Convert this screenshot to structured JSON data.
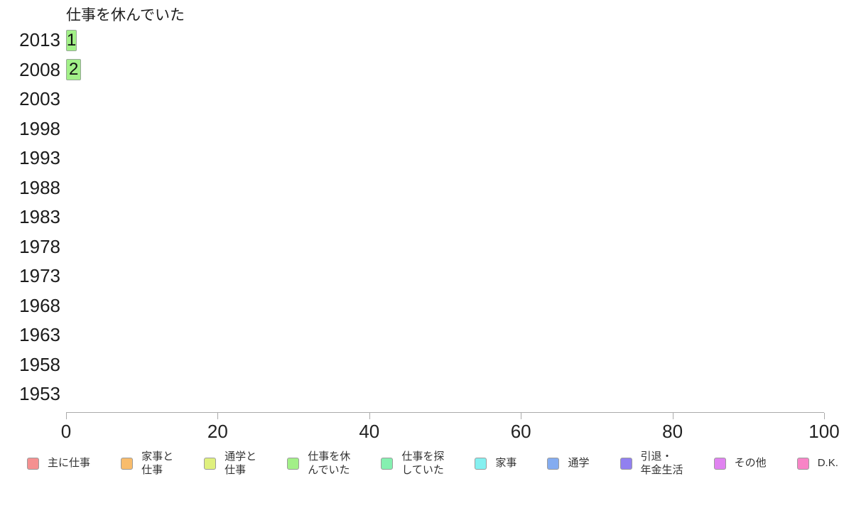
{
  "chart_data": {
    "type": "bar",
    "orientation": "horizontal",
    "title": "仕事を休んでいた",
    "series_name": "仕事を休んでいた",
    "categories": [
      "2013",
      "2008",
      "2003",
      "1998",
      "1993",
      "1988",
      "1983",
      "1978",
      "1973",
      "1968",
      "1963",
      "1958",
      "1953"
    ],
    "values": [
      1,
      2,
      0,
      0,
      0,
      0,
      0,
      0,
      0,
      0,
      0,
      0,
      0
    ],
    "show_value_labels": true,
    "xlim": [
      0,
      100
    ],
    "x_ticks": [
      0,
      20,
      40,
      60,
      80,
      100
    ],
    "grid": false,
    "bar_color": "#a2f088",
    "bar_border_color": "#96a896",
    "axis_color": "#aaaaaa",
    "legend_position": "bottom",
    "legend": [
      {
        "label": "主に仕事",
        "color": "#f59090"
      },
      {
        "label": "家事と\n仕事",
        "color": "#f8bc6c"
      },
      {
        "label": "通学と\n仕事",
        "color": "#dff07e"
      },
      {
        "label": "仕事を休\nんでいた",
        "color": "#a2f088"
      },
      {
        "label": "仕事を探\nしていた",
        "color": "#85f0b0"
      },
      {
        "label": "家事",
        "color": "#85f0f0"
      },
      {
        "label": "通学",
        "color": "#84acf0"
      },
      {
        "label": "引退・\n年金生活",
        "color": "#9180f0"
      },
      {
        "label": "その他",
        "color": "#e083f0"
      },
      {
        "label": "D.K.",
        "color": "#f884c6"
      }
    ]
  }
}
